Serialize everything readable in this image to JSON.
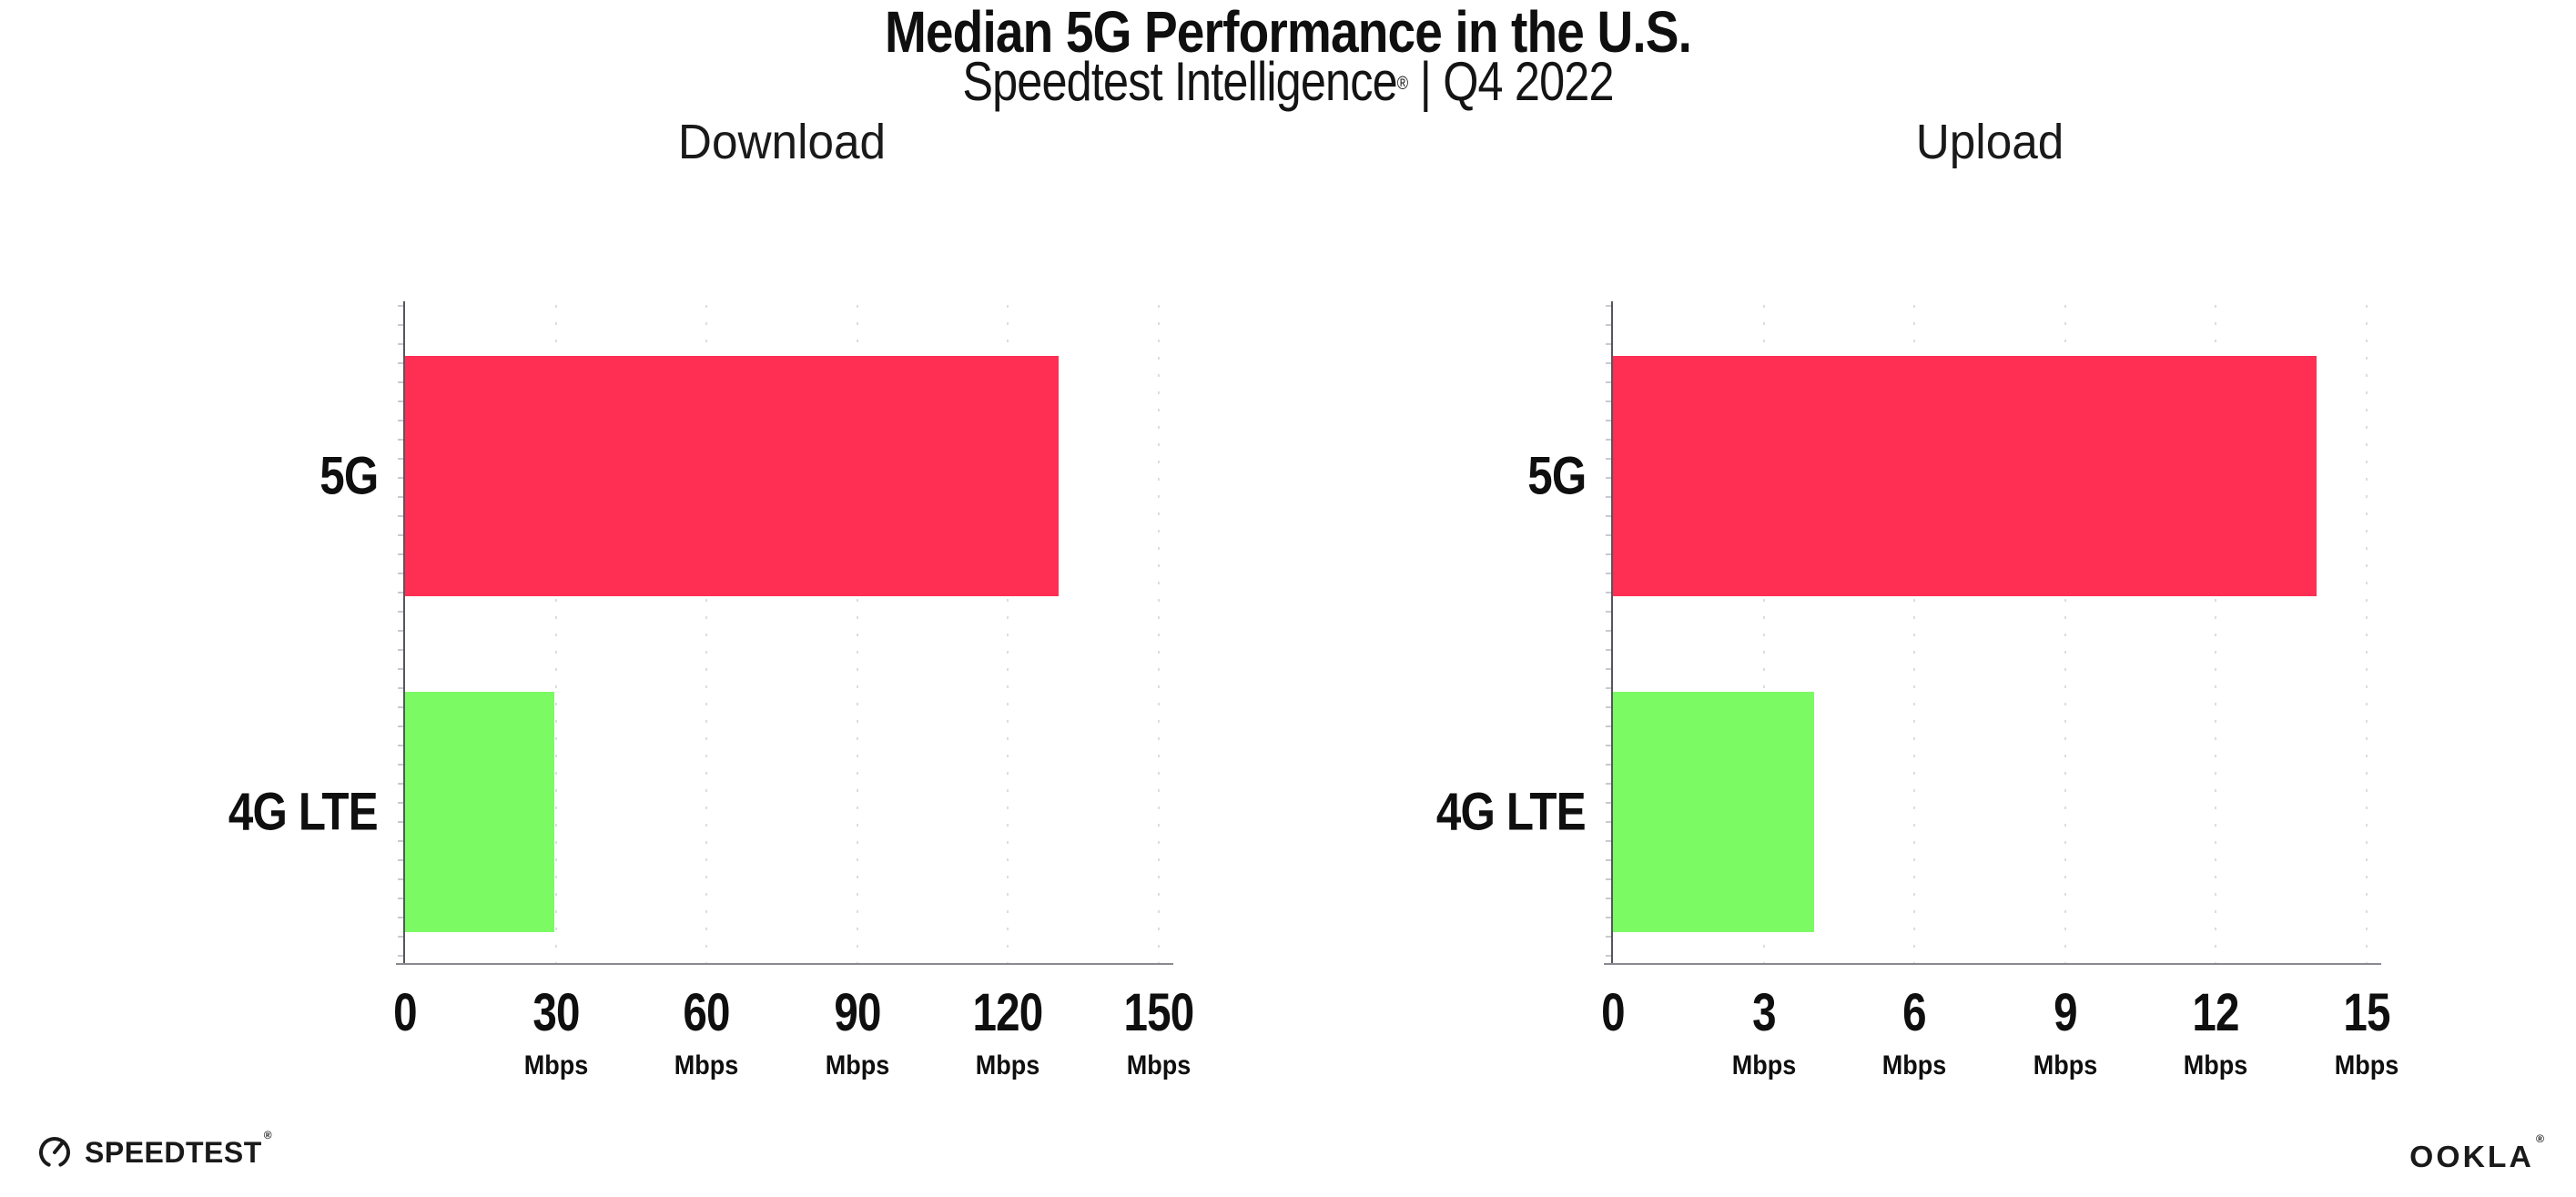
{
  "header": {
    "title": "Median 5G Performance in the U.S.",
    "subtitle_brand": "Speedtest Intelligence",
    "subtitle_reg": "®",
    "subtitle_period": "| Q4 2022"
  },
  "footer": {
    "speedtest_text": "SPEEDTEST",
    "speedtest_reg": "®",
    "ookla_text": "OOKLA",
    "ookla_reg": "®"
  },
  "colors": {
    "bar_5g": "#FF2F54",
    "bar_4g_lte": "#7CFA63",
    "axis": "#55555e",
    "grid_dots": "#dcdce4",
    "text": "#0f0f0f"
  },
  "chart_data": [
    {
      "type": "bar",
      "orientation": "horizontal",
      "title": "Download",
      "categories": [
        "5G",
        "4G LTE"
      ],
      "values": [
        130,
        29.7
      ],
      "colors": [
        "#FF2F54",
        "#7CFA63"
      ],
      "unit": "Mbps",
      "xlim": [
        0,
        150
      ],
      "xticks": [
        0,
        30,
        60,
        90,
        120,
        150
      ],
      "grid": "vertical-dotted",
      "legend": "none"
    },
    {
      "type": "bar",
      "orientation": "horizontal",
      "title": "Upload",
      "categories": [
        "5G",
        "4G LTE"
      ],
      "values": [
        14,
        4
      ],
      "colors": [
        "#FF2F54",
        "#7CFA63"
      ],
      "unit": "Mbps",
      "xlim": [
        0,
        15
      ],
      "xticks": [
        0,
        3,
        6,
        9,
        12,
        15
      ],
      "grid": "vertical-dotted",
      "legend": "none"
    }
  ]
}
